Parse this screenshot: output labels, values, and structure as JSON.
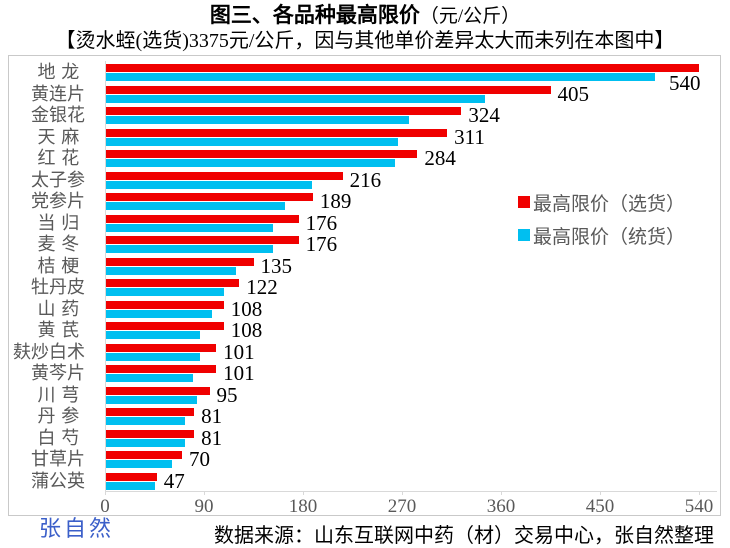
{
  "title": {
    "main": "图三、各品种最高限价",
    "unit": "（元/公斤）"
  },
  "subtitle": "【烫水蛭(选货)3375元/公斤，因与其他单价差异太大而未列在本图中】",
  "chart_data": {
    "type": "bar",
    "orientation": "horizontal",
    "title": "图三、各品种最高限价（元/公斤）",
    "categories": [
      "地龙",
      "黄连片",
      "金银花",
      "天麻",
      "红花",
      "太子参",
      "党参片",
      "当归",
      "麦冬",
      "桔梗",
      "牡丹皮",
      "山药",
      "黄芪",
      "麸炒白术",
      "黄芩片",
      "川芎",
      "丹参",
      "白芍",
      "甘草片",
      "蒲公英"
    ],
    "series": [
      {
        "name": "最高限价（选货）",
        "color": "#F00000",
        "values": [
          540,
          405,
          324,
          311,
          284,
          216,
          189,
          176,
          176,
          135,
          122,
          108,
          108,
          101,
          101,
          95,
          81,
          81,
          70,
          47
        ]
      },
      {
        "name": "最高限价（统货）",
        "color": "#00BFF0",
        "values": [
          500,
          345,
          276,
          266,
          264,
          188,
          164,
          153,
          153,
          119,
          108,
          97,
          86,
          86,
          80,
          84,
          73,
          73,
          61,
          45
        ]
      }
    ],
    "x_ticks": [
      0,
      90,
      180,
      270,
      360,
      450,
      540
    ],
    "xlim": [
      0,
      540
    ],
    "legend_position": "center-right",
    "grid": false
  },
  "watermark": "张自然",
  "footer": "数据来源：山东互联网中药（材）交易中心，张自然整理",
  "colors": {
    "selected_bar": "#F00000",
    "unified_bar": "#00BFF0",
    "axis_text": "#595959",
    "watermark": "#3B5FC9",
    "frame_border": "#C9C9C9",
    "axis_line": "#D9D9D9"
  }
}
